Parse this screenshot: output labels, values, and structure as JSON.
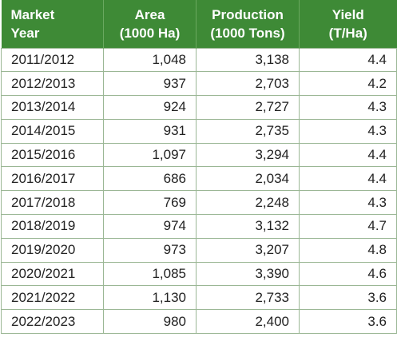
{
  "chart_data": {
    "type": "table",
    "columns": [
      {
        "line1": "Market",
        "line2": "Year"
      },
      {
        "line1": "Area",
        "line2": "(1000 Ha)"
      },
      {
        "line1": "Production",
        "line2": "(1000 Tons)"
      },
      {
        "line1": "Yield",
        "line2": "(T/Ha)"
      }
    ],
    "rows": [
      [
        "2011/2012",
        "1,048",
        "3,138",
        "4.4"
      ],
      [
        "2012/2013",
        "937",
        "2,703",
        "4.2"
      ],
      [
        "2013/2014",
        "924",
        "2,727",
        "4.3"
      ],
      [
        "2014/2015",
        "931",
        "2,735",
        "4.3"
      ],
      [
        "2015/2016",
        "1,097",
        "3,294",
        "4.4"
      ],
      [
        "2016/2017",
        "686",
        "2,034",
        "4.4"
      ],
      [
        "2017/2018",
        "769",
        "2,248",
        "4.3"
      ],
      [
        "2018/2019",
        "974",
        "3,132",
        "4.7"
      ],
      [
        "2019/2020",
        "973",
        "3,207",
        "4.8"
      ],
      [
        "2020/2021",
        "1,085",
        "3,390",
        "4.6"
      ],
      [
        "2021/2022",
        "1,130",
        "2,733",
        "3.6"
      ],
      [
        "2022/2023",
        "980",
        "2,400",
        "3.6"
      ]
    ],
    "colors": {
      "header_background": "#3e8a36",
      "header_text": "#ffffff",
      "grid_line": "#9bb795"
    }
  }
}
